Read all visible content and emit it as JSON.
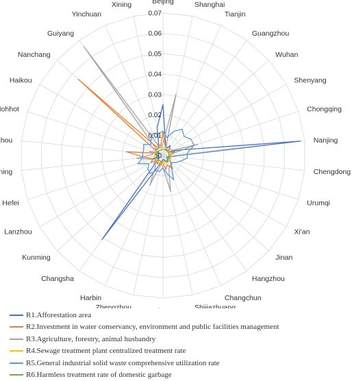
{
  "chart_data": {
    "type": "radar",
    "categories": [
      "Beijing",
      "Shanghai",
      "Tianjin",
      "Guangzhou",
      "Wuhan",
      "Shenyang",
      "Chongqing",
      "Nanjing",
      "Chengdong",
      "Urumqi",
      "Xi'an",
      "Jinan",
      "Hangzhou",
      "Changchun",
      "Shijiazhuang",
      "Taiyuan",
      "Zhengzhou",
      "Harbin",
      "Changsha",
      "Kunming",
      "Lanzhou",
      "Hefei",
      "Nanning",
      "Fuzhou",
      "Hohhot",
      "Haikou",
      "Nanchang",
      "Guiyang",
      "Yinchuan",
      "Xining"
    ],
    "ticks": [
      "0",
      "0.01",
      "0.02",
      "0.03",
      "0.04",
      "0.05",
      "0.06",
      "0.07"
    ],
    "rlim": [
      0,
      0.07
    ],
    "grid": true,
    "legend_position": "bottom",
    "series": [
      {
        "name": "R1.Afforestation area",
        "color": "#4472C4",
        "values": [
          0.025,
          0.006,
          0.004,
          0.006,
          0.004,
          0.004,
          0.009,
          0.068,
          0.004,
          0.002,
          0.002,
          0.003,
          0.004,
          0.003,
          0.002,
          0.002,
          0.003,
          0.006,
          0.051,
          0.004,
          0.002,
          0.006,
          0.002,
          0.004,
          0.003,
          0.002,
          0.005,
          0.004,
          0.005,
          0.014
        ]
      },
      {
        "name": "R2.Investment in water conservancy, environment and public facilities management",
        "color": "#ED7D31",
        "values": [
          0.012,
          0.005,
          0.004,
          0.003,
          0.004,
          0.003,
          0.006,
          0.003,
          0.004,
          0.003,
          0.004,
          0.005,
          0.008,
          0.005,
          0.007,
          0.004,
          0.003,
          0.004,
          0.005,
          0.003,
          0.007,
          0.005,
          0.009,
          0.018,
          0.004,
          0.003,
          0.056,
          0.005,
          0.006,
          0.005
        ]
      },
      {
        "name": "R3.Agriculture, forestry, animal husbandry",
        "color": "#A5A5A5",
        "values": [
          0.006,
          0.031,
          0.003,
          0.004,
          0.005,
          0.005,
          0.018,
          0.003,
          0.004,
          0.004,
          0.002,
          0.006,
          0.006,
          0.007,
          0.018,
          0.006,
          0.004,
          0.016,
          0.006,
          0.006,
          0.004,
          0.006,
          0.013,
          0.005,
          0.007,
          0.003,
          0.004,
          0.066,
          0.005,
          0.004
        ]
      },
      {
        "name": "R4.Sewage treatment plant centralized treatment rate",
        "color": "#FFC000",
        "values": [
          0.004,
          0.004,
          0.004,
          0.004,
          0.004,
          0.004,
          0.004,
          0.004,
          0.004,
          0.004,
          0.004,
          0.004,
          0.004,
          0.004,
          0.004,
          0.004,
          0.004,
          0.004,
          0.004,
          0.004,
          0.004,
          0.004,
          0.004,
          0.004,
          0.004,
          0.004,
          0.004,
          0.004,
          0.004,
          0.004
        ]
      },
      {
        "name": "R5.General industrial solid waste comprehensive utilization rate",
        "color": "#5B9BD5",
        "values": [
          0.012,
          0.009,
          0.013,
          0.016,
          0.014,
          0.016,
          0.016,
          0.012,
          0.012,
          0.009,
          0.007,
          0.005,
          0.007,
          0.013,
          0.009,
          0.006,
          0.008,
          0.008,
          0.011,
          0.01,
          0.008,
          0.013,
          0.01,
          0.01,
          0.01,
          0.011,
          0.008,
          0.01,
          0.012,
          0.011
        ]
      },
      {
        "name": "R6.Harmless treatment rate of domestic garbage",
        "color": "#70AD47",
        "values": [
          0.003,
          0.003,
          0.003,
          0.003,
          0.003,
          0.003,
          0.003,
          0.003,
          0.003,
          0.003,
          0.003,
          0.003,
          0.003,
          0.003,
          0.003,
          0.003,
          0.003,
          0.003,
          0.003,
          0.003,
          0.003,
          0.003,
          0.003,
          0.003,
          0.003,
          0.003,
          0.003,
          0.003,
          0.003,
          0.003
        ]
      }
    ]
  }
}
